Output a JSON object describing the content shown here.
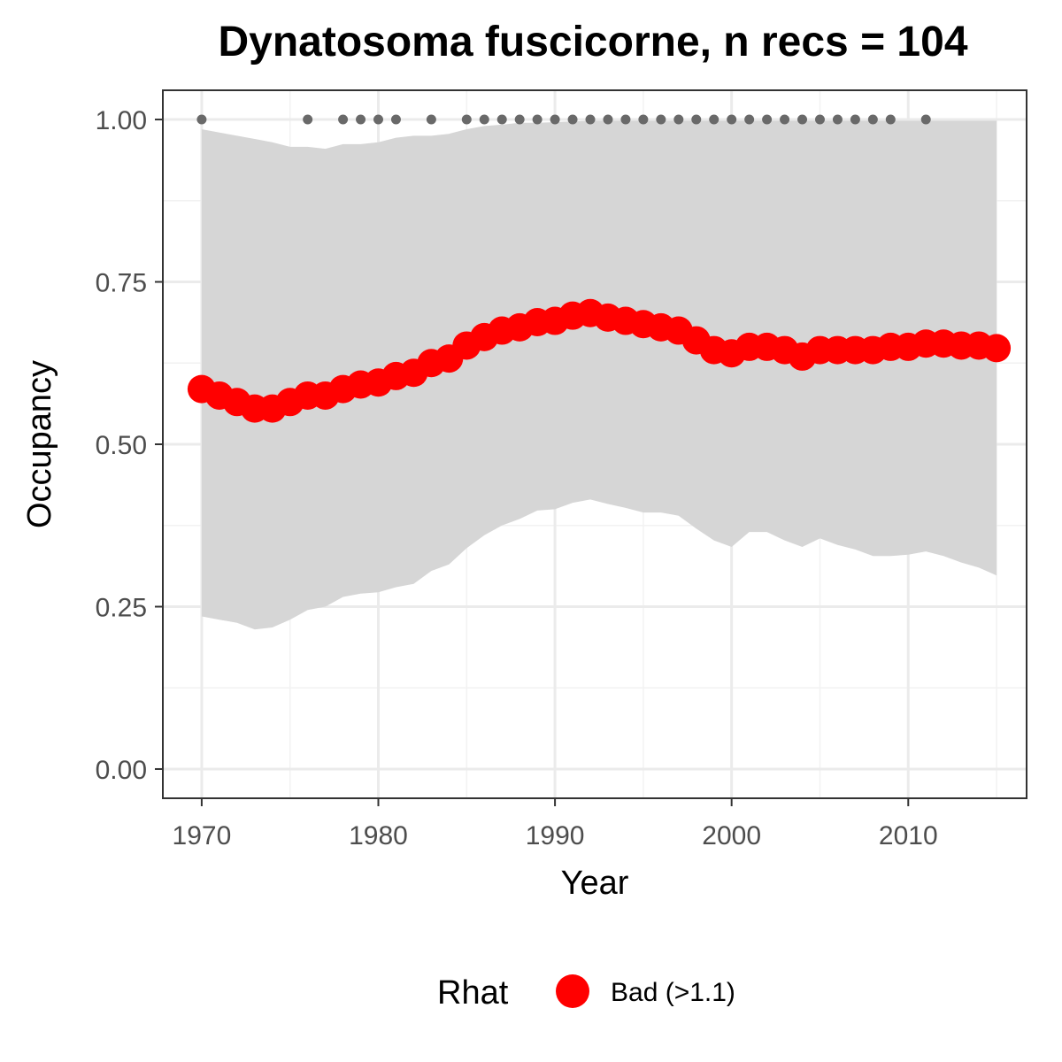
{
  "chart_data": {
    "type": "line",
    "title": "Dynatosoma fuscicorne, n recs = 104",
    "xlabel": "Year",
    "ylabel": "Occupancy",
    "xlim": [
      1967.8,
      2016.7
    ],
    "ylim": [
      -0.045,
      1.045
    ],
    "x_ticks": [
      1970,
      1980,
      1990,
      2000,
      2010
    ],
    "x_tick_labels": [
      "1970",
      "1980",
      "1990",
      "2000",
      "2010"
    ],
    "y_ticks": [
      0,
      0.25,
      0.5,
      0.75,
      1.0
    ],
    "y_tick_labels": [
      "0.00",
      "0.25",
      "0.50",
      "0.75",
      "1.00"
    ],
    "grid": true,
    "x": [
      1970,
      1971,
      1972,
      1973,
      1974,
      1975,
      1976,
      1977,
      1978,
      1979,
      1980,
      1981,
      1982,
      1983,
      1984,
      1985,
      1986,
      1987,
      1988,
      1989,
      1990,
      1991,
      1992,
      1993,
      1994,
      1995,
      1996,
      1997,
      1998,
      1999,
      2000,
      2001,
      2002,
      2003,
      2004,
      2005,
      2006,
      2007,
      2008,
      2009,
      2010,
      2011,
      2012,
      2013,
      2014,
      2015
    ],
    "series": [
      {
        "name": "Bad (>1.1)",
        "kind": "occupancy-mean",
        "color": "#ff0000",
        "values": [
          0.585,
          0.575,
          0.565,
          0.555,
          0.555,
          0.565,
          0.575,
          0.575,
          0.585,
          0.592,
          0.595,
          0.605,
          0.61,
          0.625,
          0.632,
          0.652,
          0.665,
          0.675,
          0.68,
          0.688,
          0.69,
          0.698,
          0.702,
          0.695,
          0.69,
          0.685,
          0.68,
          0.675,
          0.66,
          0.645,
          0.64,
          0.65,
          0.65,
          0.645,
          0.635,
          0.645,
          0.645,
          0.645,
          0.645,
          0.65,
          0.65,
          0.655,
          0.655,
          0.652,
          0.652,
          0.648
        ]
      },
      {
        "kind": "credible-interval",
        "color": "#d6d6d6",
        "lower": [
          0.235,
          0.23,
          0.225,
          0.215,
          0.218,
          0.23,
          0.245,
          0.25,
          0.265,
          0.27,
          0.272,
          0.28,
          0.285,
          0.305,
          0.315,
          0.34,
          0.36,
          0.375,
          0.385,
          0.398,
          0.4,
          0.41,
          0.415,
          0.408,
          0.402,
          0.395,
          0.395,
          0.39,
          0.37,
          0.352,
          0.342,
          0.365,
          0.365,
          0.352,
          0.342,
          0.355,
          0.345,
          0.338,
          0.328,
          0.328,
          0.33,
          0.335,
          0.328,
          0.318,
          0.31,
          0.298
        ],
        "upper": [
          0.985,
          0.98,
          0.975,
          0.97,
          0.965,
          0.958,
          0.958,
          0.955,
          0.962,
          0.962,
          0.965,
          0.972,
          0.975,
          0.975,
          0.978,
          0.985,
          0.99,
          0.992,
          0.995,
          0.995,
          0.996,
          0.997,
          0.998,
          0.998,
          0.998,
          0.998,
          0.998,
          0.998,
          0.998,
          0.998,
          0.998,
          0.998,
          0.998,
          0.998,
          0.998,
          0.998,
          0.998,
          0.998,
          0.998,
          0.998,
          0.998,
          0.998,
          0.998,
          0.998,
          0.998,
          0.998
        ]
      },
      {
        "kind": "records",
        "color": "#696969",
        "x": [
          1970,
          1976,
          1978,
          1979,
          1980,
          1981,
          1983,
          1985,
          1986,
          1987,
          1988,
          1989,
          1990,
          1991,
          1992,
          1993,
          1994,
          1995,
          1996,
          1997,
          1998,
          1999,
          2000,
          2001,
          2002,
          2003,
          2004,
          2005,
          2006,
          2007,
          2008,
          2009,
          2011
        ],
        "values": [
          1,
          1,
          1,
          1,
          1,
          1,
          1,
          1,
          1,
          1,
          1,
          1,
          1,
          1,
          1,
          1,
          1,
          1,
          1,
          1,
          1,
          1,
          1,
          1,
          1,
          1,
          1,
          1,
          1,
          1,
          1,
          1,
          1
        ]
      }
    ],
    "legend": {
      "title": "Rhat",
      "position": "bottom",
      "entries": [
        {
          "label": "Bad (>1.1)",
          "color": "#ff0000"
        }
      ]
    }
  }
}
